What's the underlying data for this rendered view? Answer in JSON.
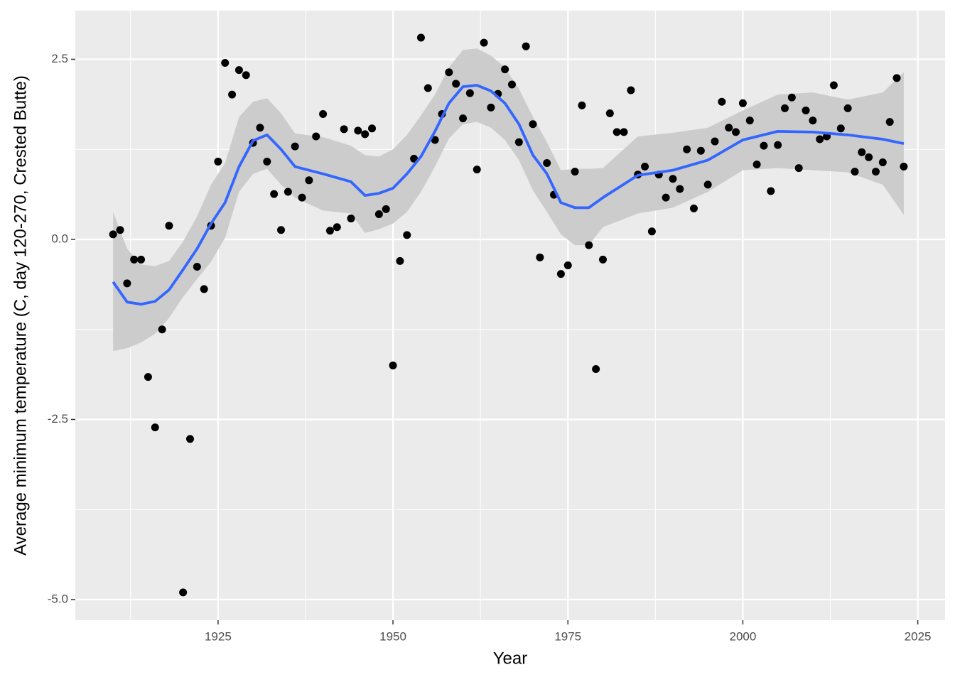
{
  "chart_data": {
    "type": "scatter",
    "x_label": "Year",
    "y_label": "Average minimum temperature (C, day 120-270, Crested Butte)",
    "x": [
      1910,
      1911,
      1912,
      1913,
      1914,
      1915,
      1916,
      1917,
      1918,
      1920,
      1921,
      1922,
      1923,
      1924,
      1925,
      1926,
      1927,
      1928,
      1929,
      1930,
      1931,
      1932,
      1933,
      1934,
      1935,
      1936,
      1937,
      1938,
      1939,
      1940,
      1941,
      1942,
      1943,
      1944,
      1945,
      1946,
      1947,
      1948,
      1949,
      1950,
      1951,
      1952,
      1953,
      1954,
      1955,
      1956,
      1957,
      1958,
      1959,
      1960,
      1961,
      1962,
      1963,
      1964,
      1965,
      1966,
      1967,
      1968,
      1969,
      1970,
      1971,
      1972,
      1973,
      1974,
      1975,
      1976,
      1977,
      1978,
      1979,
      1980,
      1981,
      1982,
      1983,
      1984,
      1985,
      1986,
      1987,
      1988,
      1989,
      1990,
      1991,
      1992,
      1993,
      1994,
      1995,
      1996,
      1997,
      1998,
      1999,
      2000,
      2001,
      2002,
      2003,
      2004,
      2005,
      2006,
      2007,
      2008,
      2009,
      2010,
      2011,
      2012,
      2013,
      2014,
      2015,
      2016,
      2017,
      2018,
      2019,
      2020,
      2021,
      2022,
      2023
    ],
    "values": [
      0.07,
      0.13,
      -0.61,
      -0.28,
      -0.28,
      -1.91,
      -2.61,
      -1.25,
      0.19,
      -4.9,
      -2.77,
      -0.38,
      -0.69,
      0.19,
      1.08,
      2.45,
      2.01,
      2.35,
      2.28,
      1.34,
      1.55,
      1.08,
      0.63,
      0.13,
      0.66,
      1.29,
      0.58,
      0.82,
      1.43,
      1.74,
      0.12,
      0.17,
      1.53,
      0.29,
      1.51,
      1.46,
      1.54,
      0.35,
      0.42,
      -1.75,
      -0.3,
      0.06,
      1.12,
      2.8,
      2.1,
      1.38,
      1.74,
      2.32,
      2.16,
      1.68,
      2.03,
      0.97,
      2.73,
      1.83,
      2.02,
      2.36,
      2.15,
      1.35,
      2.68,
      1.6,
      -0.25,
      1.06,
      0.62,
      -0.48,
      -0.36,
      0.94,
      1.86,
      -0.08,
      -1.8,
      -0.28,
      1.75,
      1.49,
      1.49,
      2.07,
      0.9,
      1.01,
      0.11,
      0.9,
      0.58,
      0.84,
      0.7,
      1.25,
      0.43,
      1.23,
      0.76,
      1.36,
      1.91,
      1.55,
      1.49,
      1.89,
      1.65,
      1.04,
      1.3,
      0.67,
      1.31,
      1.82,
      1.97,
      0.99,
      1.79,
      1.65,
      1.39,
      1.43,
      2.14,
      1.54,
      1.82,
      0.94,
      1.21,
      1.14,
      0.94,
      1.07,
      1.63,
      2.24,
      1.01
    ],
    "color": "#000000",
    "smooth": {
      "color": "#3366ff",
      "band_color": "#cccccc",
      "x": [
        1910,
        1912,
        1914,
        1916,
        1918,
        1920,
        1922,
        1924,
        1926,
        1928,
        1930,
        1932,
        1934,
        1936,
        1940,
        1944,
        1946,
        1948,
        1950,
        1952,
        1954,
        1956,
        1958,
        1960,
        1962,
        1964,
        1966,
        1968,
        1970,
        1972,
        1974,
        1976,
        1978,
        1980,
        1985,
        1990,
        1995,
        2000,
        2005,
        2010,
        2015,
        2020,
        2023
      ],
      "values": [
        -0.59,
        -0.87,
        -0.9,
        -0.86,
        -0.7,
        -0.42,
        -0.13,
        0.22,
        0.51,
        1.01,
        1.37,
        1.45,
        1.25,
        1.01,
        0.91,
        0.8,
        0.61,
        0.64,
        0.71,
        0.91,
        1.15,
        1.5,
        1.89,
        2.12,
        2.14,
        2.06,
        1.89,
        1.6,
        1.17,
        0.91,
        0.51,
        0.44,
        0.44,
        0.58,
        0.89,
        0.96,
        1.1,
        1.38,
        1.5,
        1.49,
        1.45,
        1.39,
        1.33
      ],
      "upper": [
        0.38,
        -0.13,
        -0.35,
        -0.37,
        -0.3,
        -0.03,
        0.32,
        0.76,
        1.06,
        1.7,
        1.91,
        1.96,
        1.75,
        1.47,
        1.42,
        1.3,
        1.17,
        1.15,
        1.25,
        1.45,
        1.72,
        2.01,
        2.39,
        2.63,
        2.65,
        2.55,
        2.39,
        2.09,
        1.7,
        1.35,
        0.96,
        0.98,
        0.98,
        0.99,
        1.43,
        1.48,
        1.55,
        1.79,
        2.01,
        2.04,
        1.94,
        2.04,
        2.32
      ],
      "lower": [
        -1.55,
        -1.51,
        -1.43,
        -1.31,
        -1.09,
        -0.8,
        -0.55,
        -0.31,
        0.02,
        0.66,
        0.91,
        0.98,
        0.76,
        0.58,
        0.4,
        0.36,
        0.09,
        0.14,
        0.22,
        0.38,
        0.66,
        1.01,
        1.4,
        1.6,
        1.63,
        1.55,
        1.38,
        1.1,
        0.68,
        0.38,
        0.07,
        -0.08,
        -0.08,
        0.17,
        0.36,
        0.44,
        0.66,
        0.96,
        0.99,
        0.96,
        0.93,
        0.76,
        0.34
      ]
    },
    "xlim": [
      1904.6,
      2028.9
    ],
    "ylim": [
      -5.286,
      3.175
    ],
    "xticks": [
      1925,
      1950,
      1975,
      2000,
      2025
    ],
    "yticks": [
      2.5,
      {
        "value": 0,
        "label": "0.0"
      },
      -2.5,
      {
        "value": -5,
        "label": "-5.0"
      }
    ],
    "grid": true,
    "minor_grid": true
  }
}
